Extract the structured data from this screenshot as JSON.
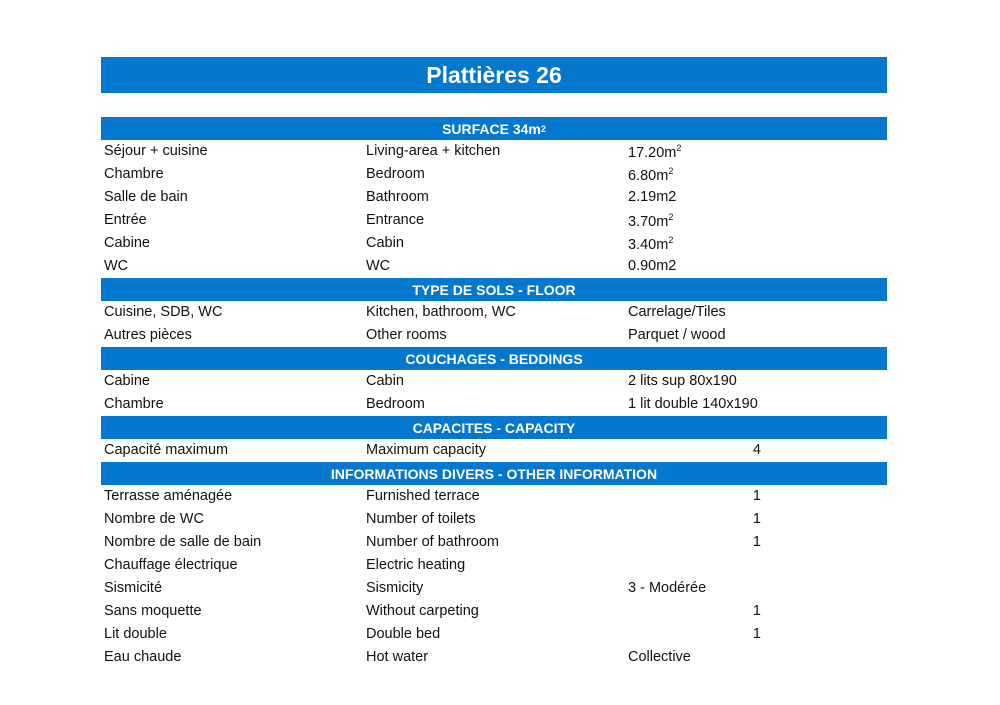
{
  "title": "Plattières 26",
  "sections": [
    {
      "header": "SURFACE 34m",
      "header_sup": "2",
      "rows": [
        {
          "fr": "Séjour + cuisine",
          "en": "Living-area + kitchen",
          "value": "17.20m",
          "sup": "2"
        },
        {
          "fr": "Chambre",
          "en": "Bedroom",
          "value": "6.80m",
          "sup": "2"
        },
        {
          "fr": "Salle de bain",
          "en": "Bathroom",
          "value": "2.19m2"
        },
        {
          "fr": "Entrée",
          "en": "Entrance",
          "value": "3.70m",
          "sup": "2"
        },
        {
          "fr": "Cabine",
          "en": "Cabin",
          "value": "3.40m",
          "sup": "2"
        },
        {
          "fr": "WC",
          "en": "WC",
          "value": "0.90m2"
        }
      ]
    },
    {
      "header": "TYPE DE SOLS - FLOOR",
      "rows": [
        {
          "fr": "Cuisine, SDB, WC",
          "en": "Kitchen, bathroom, WC",
          "value": "Carrelage/Tiles"
        },
        {
          "fr": "Autres pièces",
          "en": "Other rooms",
          "value": "Parquet / wood"
        }
      ]
    },
    {
      "header": "COUCHAGES - BEDDINGS",
      "rows": [
        {
          "fr": "Cabine",
          "en": "Cabin",
          "value": "2 lits sup 80x190"
        },
        {
          "fr": "Chambre",
          "en": "Bedroom",
          "value": "1 lit double 140x190"
        }
      ]
    },
    {
      "header": "CAPACITES - CAPACITY",
      "rows": [
        {
          "fr": "Capacité maximum",
          "en": "Maximum capacity",
          "value": "4",
          "numeric": true
        }
      ]
    },
    {
      "header": "INFORMATIONS DIVERS - OTHER INFORMATION",
      "rows": [
        {
          "fr": "Terrasse aménagée",
          "en": "Furnished terrace",
          "value": "1",
          "numeric": true
        },
        {
          "fr": "Nombre de WC",
          "en": "Number of toilets",
          "value": "1",
          "numeric": true
        },
        {
          "fr": "Nombre de salle de bain",
          "en": "Number of bathroom",
          "value": "1",
          "numeric": true
        },
        {
          "fr": "Chauffage électrique",
          "en": "Electric heating",
          "value": ""
        },
        {
          "fr": "Sismicité",
          "en": "Sismicity",
          "value": "3 - Modérée"
        },
        {
          "fr": "Sans moquette",
          "en": "Without carpeting",
          "value": "1",
          "numeric": true
        },
        {
          "fr": "Lit double",
          "en": "Double bed",
          "value": "1",
          "numeric": true
        },
        {
          "fr": "Eau chaude",
          "en": "Hot water",
          "value": "Collective"
        }
      ]
    }
  ],
  "colors": {
    "header_bg": "#0477cf",
    "header_text": "#ffffff"
  }
}
